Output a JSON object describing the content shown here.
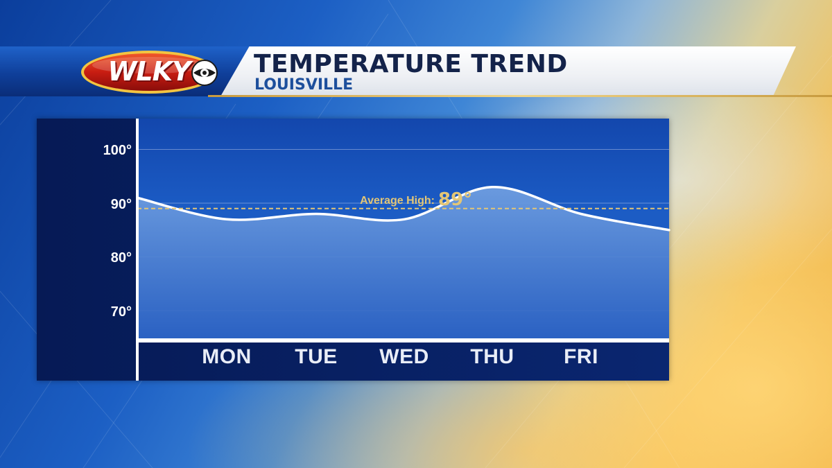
{
  "brand": {
    "logo_text": "WLKY",
    "logo_mark": "cbs-eye-icon"
  },
  "header": {
    "title": "TEMPERATURE TREND",
    "subtitle": "LOUISVILLE"
  },
  "colors": {
    "panel": "#0a2670",
    "plot_area": "#1a56c0",
    "curve": "#ffffff",
    "average_line": "#e3c676",
    "banner_gold": "#c79a3e"
  },
  "chart_data": {
    "type": "line",
    "title": "TEMPERATURE TREND",
    "subtitle": "LOUISVILLE",
    "categories": [
      "MON",
      "TUE",
      "WED",
      "THU",
      "FRI"
    ],
    "y_ticks": [
      "100°",
      "90°",
      "80°",
      "70°"
    ],
    "y_tick_values": [
      100,
      90,
      80,
      70
    ],
    "ylim": [
      65,
      105
    ],
    "grid": true,
    "series": [
      {
        "values": [
          87,
          88,
          87,
          93,
          88
        ],
        "start_value": 91,
        "end_value": 85
      }
    ],
    "reference_line": {
      "label": "Average High:",
      "value_label": "89°",
      "value": 89
    }
  }
}
